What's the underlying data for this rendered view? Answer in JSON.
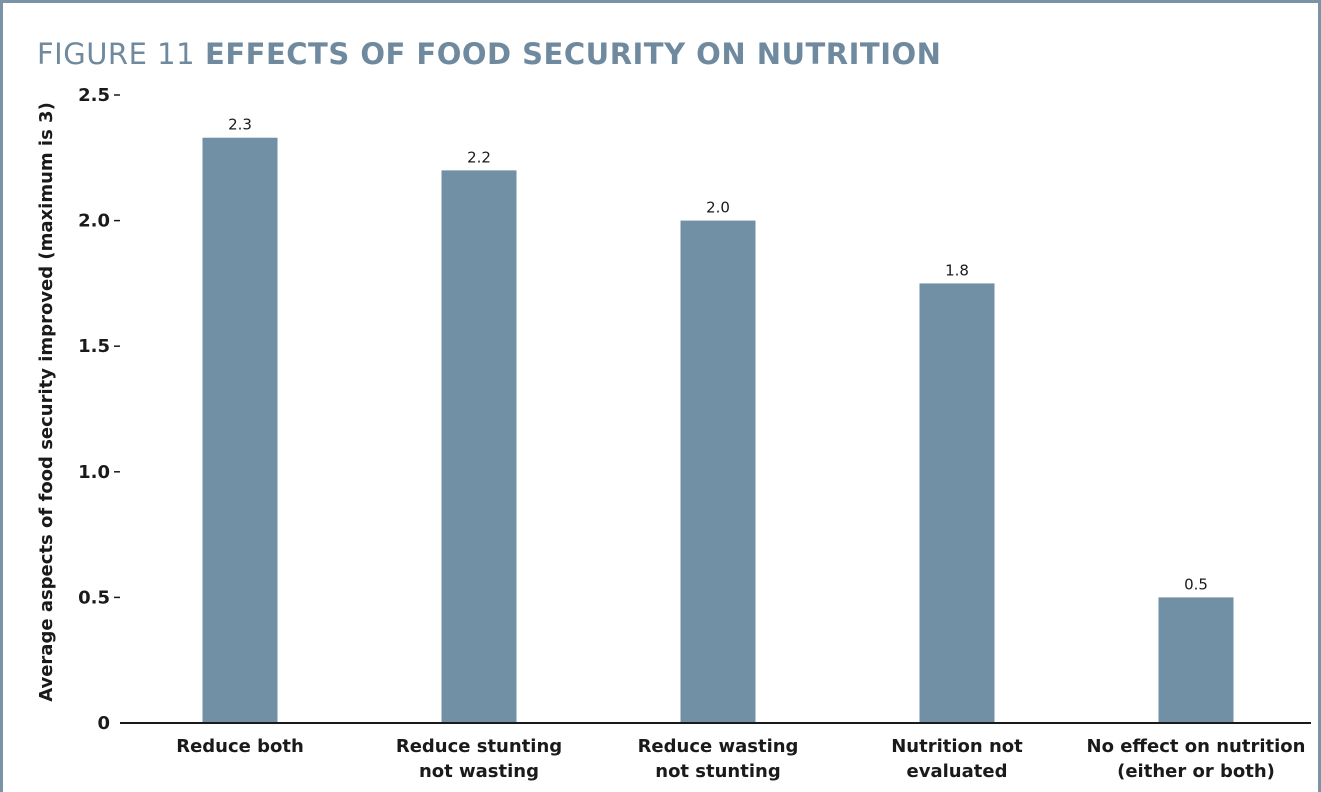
{
  "figure": {
    "label": "FIGURE 11",
    "title": "EFFECTS OF FOOD SECURITY ON NUTRITION"
  },
  "colors": {
    "bar": "#7290a5",
    "frame": "#7a93a5",
    "heading": "#6f8a9f",
    "text": "#1a1a1a"
  },
  "chart_data": {
    "type": "bar",
    "title": "EFFECTS OF FOOD SECURITY ON NUTRITION",
    "ylabel": "Average aspects of food security improved (maximum is 3)",
    "xlabel": "",
    "ylim": [
      0,
      2.5
    ],
    "yticks": [
      {
        "value": 0,
        "label": "0"
      },
      {
        "value": 0.5,
        "label": "0.5"
      },
      {
        "value": 1.0,
        "label": "1.0"
      },
      {
        "value": 1.5,
        "label": "1.5"
      },
      {
        "value": 2.0,
        "label": "2.0"
      },
      {
        "value": 2.5,
        "label": "2.5"
      }
    ],
    "categories": [
      [
        "Reduce both"
      ],
      [
        "Reduce stunting",
        "not wasting"
      ],
      [
        "Reduce wasting",
        "not stunting"
      ],
      [
        "Nutrition not",
        "evaluated"
      ],
      [
        "No effect on nutrition",
        "(either or both)"
      ]
    ],
    "values": [
      2.33,
      2.2,
      2.0,
      1.75,
      0.5
    ],
    "data_labels": [
      "2.3",
      "2.2",
      "2.0",
      "1.8",
      "0.5"
    ],
    "grid": false,
    "legend": "none"
  }
}
